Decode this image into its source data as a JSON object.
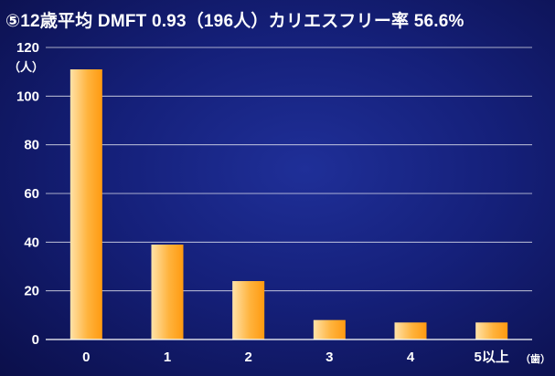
{
  "colors": {
    "background": "#15207a",
    "bar_light": "#ffd99a",
    "bar_dark": "#ff9d14",
    "grid": "#ffffff"
  },
  "chart_data": {
    "type": "bar",
    "title": "⑤12歳平均 DMFT 0.93（196人）カリエスフリー率 56.6%",
    "ylabel": "（人）",
    "xlabel": "（歯）",
    "categories": [
      "0",
      "1",
      "2",
      "3",
      "4",
      "5以上"
    ],
    "values": [
      111,
      39,
      24,
      8,
      7,
      7
    ],
    "ylim": [
      0,
      120
    ],
    "yticks": [
      "0",
      "20",
      "40",
      "60",
      "80",
      "100",
      "120"
    ],
    "grid": true
  }
}
